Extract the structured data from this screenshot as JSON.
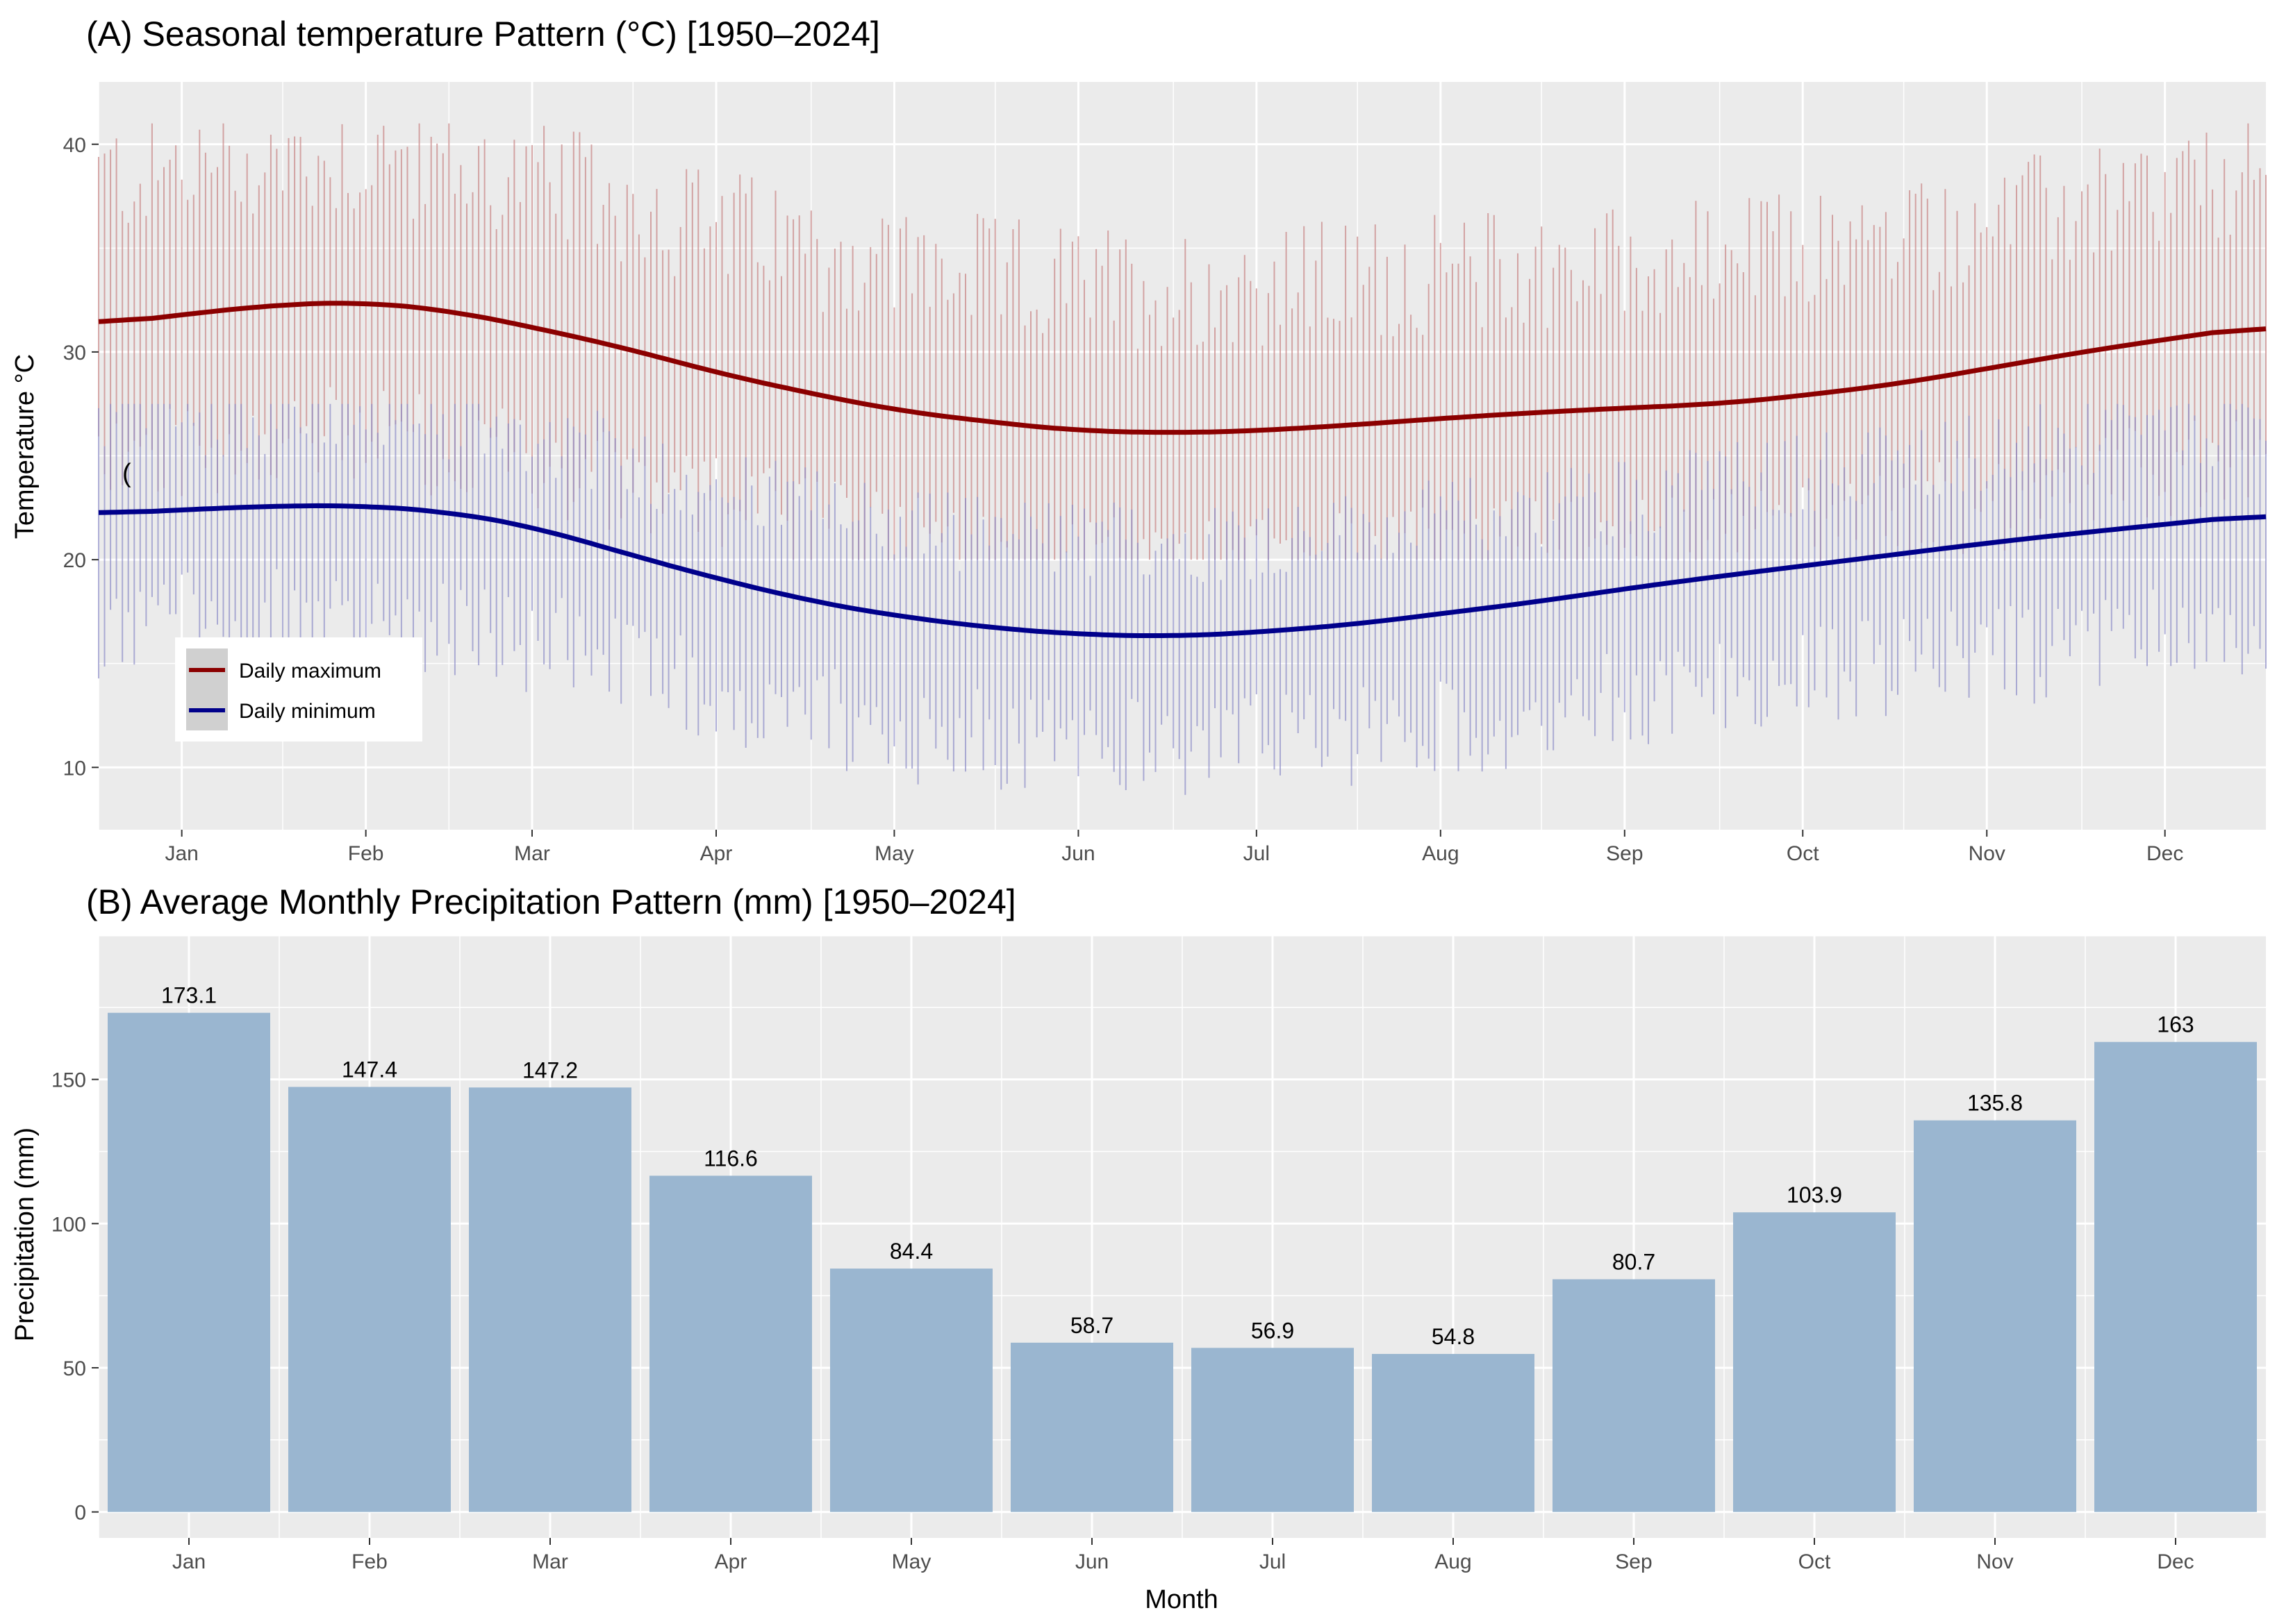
{
  "chart_data": [
    {
      "type": "line",
      "title": "(A) Seasonal temperature Pattern (°C) [1950–2024]",
      "xlabel": "",
      "ylabel": "Temperature °C",
      "ylim": [
        7,
        43
      ],
      "y_ticks": [
        10,
        20,
        30,
        40
      ],
      "x_tick_labels": [
        "Jan",
        "Feb",
        "Mar",
        "Apr",
        "May",
        "Jun",
        "Jul",
        "Aug",
        "Sep",
        "Oct",
        "Nov",
        "Dec"
      ],
      "x_unit": "day of year",
      "xlim": [
        1,
        366
      ],
      "x_tick_days": [
        15,
        46,
        74,
        105,
        135,
        166,
        196,
        227,
        258,
        288,
        319,
        349
      ],
      "month_start_days": [
        1,
        32,
        60,
        91,
        121,
        152,
        182,
        213,
        244,
        274,
        305,
        335
      ],
      "legend": {
        "position": "bottom-left inside",
        "entries": [
          {
            "label": "Daily maximum",
            "color": "#8b0000"
          },
          {
            "label": "Daily minimum",
            "color": "#00008b"
          }
        ]
      },
      "annotation": "(",
      "series": [
        {
          "name": "Daily maximum",
          "color": "#8b0000",
          "x": [
            1,
            15,
            32,
            46,
            60,
            74,
            91,
            105,
            121,
            135,
            152,
            166,
            182,
            196,
            213,
            227,
            244,
            258,
            274,
            288,
            305,
            319,
            335,
            349,
            366
          ],
          "values": [
            31.3,
            31.8,
            32.3,
            32.4,
            32.0,
            31.2,
            30.1,
            29.0,
            28.0,
            27.2,
            26.6,
            26.2,
            26.1,
            26.2,
            26.5,
            26.8,
            27.1,
            27.3,
            27.5,
            27.9,
            28.5,
            29.2,
            30.0,
            30.6,
            31.3
          ]
        },
        {
          "name": "Daily minimum",
          "color": "#00008b",
          "x": [
            1,
            15,
            32,
            46,
            60,
            74,
            91,
            105,
            121,
            135,
            152,
            166,
            182,
            196,
            213,
            227,
            244,
            258,
            274,
            288,
            305,
            319,
            335,
            349,
            366
          ],
          "values": [
            22.2,
            22.4,
            22.6,
            22.6,
            22.3,
            21.6,
            20.2,
            19.1,
            18.0,
            17.3,
            16.7,
            16.4,
            16.3,
            16.5,
            16.9,
            17.4,
            18.0,
            18.6,
            19.2,
            19.7,
            20.3,
            20.8,
            21.3,
            21.7,
            22.2
          ]
        }
      ],
      "daily_spread": {
        "max_series_typical_range": [
          20,
          41
        ],
        "min_series_typical_range": [
          8.6,
          27
        ]
      }
    },
    {
      "type": "bar",
      "title": "(B) Average Monthly Precipitation Pattern (mm) [1950–2024]",
      "xlabel": "Month",
      "ylabel": "Precipitation (mm)",
      "ylim": [
        -9,
        200
      ],
      "y_ticks": [
        0,
        50,
        100,
        150
      ],
      "bar_color": "#9ab6d0",
      "categories": [
        "Jan",
        "Feb",
        "Mar",
        "Apr",
        "May",
        "Jun",
        "Jul",
        "Aug",
        "Sep",
        "Oct",
        "Nov",
        "Dec"
      ],
      "values": [
        173.1,
        147.4,
        147.2,
        116.6,
        84.4,
        58.7,
        56.9,
        54.8,
        80.7,
        103.9,
        135.8,
        163
      ],
      "data_labels": [
        "173.1",
        "147.4",
        "147.2",
        "116.6",
        "84.4",
        "58.7",
        "56.9",
        "54.8",
        "80.7",
        "103.9",
        "135.8",
        "163"
      ]
    }
  ],
  "colors": {
    "panel_background": "#ebebeb",
    "grid_major": "#ffffff",
    "tmax_line": "#8b0000",
    "tmin_line": "#00008b",
    "tmax_noise": "#c98a8a",
    "tmin_noise": "#8d8dc8",
    "bar_fill": "#9ab6d0",
    "tick_text": "#4d4d4d"
  }
}
